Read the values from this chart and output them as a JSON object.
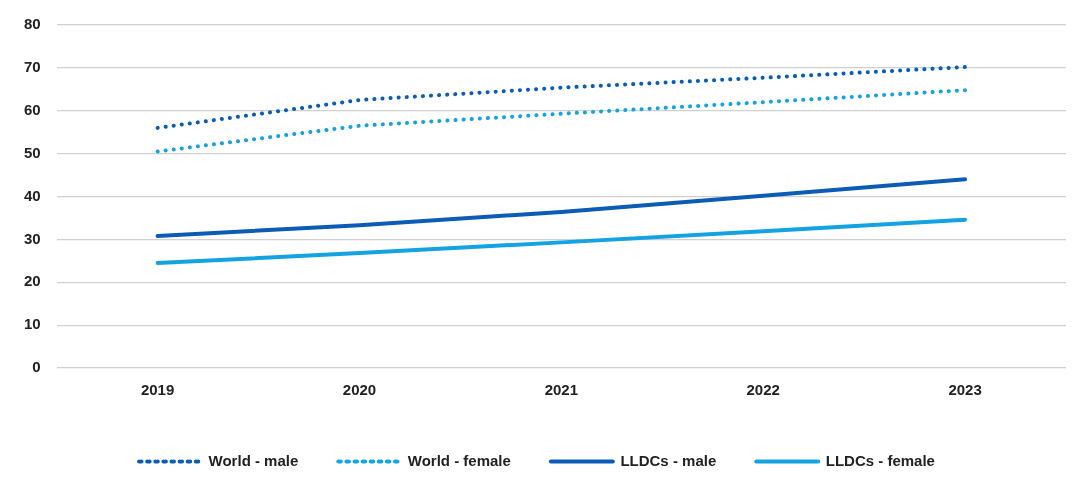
{
  "chart_data": {
    "type": "line",
    "categories": [
      "2019",
      "2020",
      "2021",
      "2022",
      "2023"
    ],
    "series": [
      {
        "name": "World - male",
        "color": "#0b5cb5",
        "line_style": "dotted",
        "values": [
          56,
          62.5,
          65.4,
          67.7,
          70.2
        ]
      },
      {
        "name": "World - female",
        "color": "#13a3e0",
        "line_style": "dotted",
        "values": [
          50.5,
          56.5,
          59.3,
          62,
          64.8
        ]
      },
      {
        "name": "LLDCs - male",
        "color": "#0b5cb5",
        "line_style": "solid",
        "values": [
          30.8,
          33.3,
          36.4,
          40.2,
          44
        ]
      },
      {
        "name": "LLDCs - female",
        "color": "#13a3e0",
        "line_style": "solid",
        "values": [
          24.5,
          26.8,
          29.3,
          31.9,
          34.6
        ]
      }
    ],
    "ylim": [
      0,
      80
    ],
    "yticks": [
      0,
      10,
      20,
      30,
      40,
      50,
      60,
      70,
      80
    ],
    "grid": "y",
    "legend": "bottom",
    "marker": "none"
  }
}
